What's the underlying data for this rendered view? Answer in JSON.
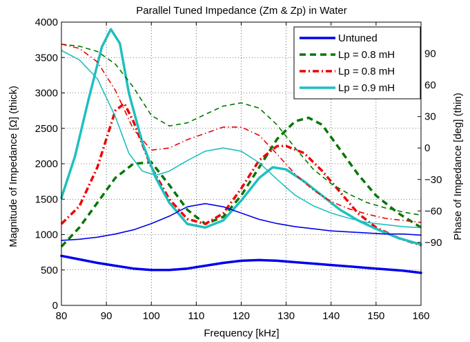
{
  "chart_data": {
    "type": "line",
    "title": "Parallel Tuned Impedance (Zm & Zp) in Water",
    "xlabel": "Frequency [kHz]",
    "ylabel_left": "Magnitude of Impedance [Ω] (thick)",
    "ylabel_right": "Phase of Impedance [deg] (thin)",
    "xlim": [
      80,
      160
    ],
    "ylim_left": [
      0,
      4000
    ],
    "ylim_right": [
      -150,
      120
    ],
    "x_ticks": [
      "80",
      "90",
      "100",
      "110",
      "120",
      "130",
      "140",
      "150",
      "160"
    ],
    "y_left_ticks": [
      "0",
      "500",
      "1000",
      "1500",
      "2000",
      "2500",
      "3000",
      "3500",
      "4000"
    ],
    "y_right_ticks": [
      "−90",
      "−60",
      "−30",
      "0",
      "30",
      "60",
      "90"
    ],
    "grid": true,
    "legend_position": "top-right",
    "legend": [
      {
        "label": "Untuned",
        "color": "#0000ee",
        "style": "solid"
      },
      {
        "label": "Lp = 0.8 mH",
        "color": "#007700",
        "style": "dashed"
      },
      {
        "label": "Lp = 0.8 mH",
        "color": "#ee0000",
        "style": "dashdot"
      },
      {
        "label": "Lp = 0.9 mH",
        "color": "#1fbfbf",
        "style": "solid"
      }
    ],
    "series": [
      {
        "name": "Untuned",
        "axis": "left",
        "weight": "thick",
        "color": "#0000ee",
        "style": "solid",
        "x": [
          80,
          84,
          88,
          92,
          96,
          100,
          104,
          108,
          112,
          116,
          120,
          124,
          128,
          132,
          136,
          140,
          144,
          148,
          152,
          156,
          160
        ],
        "y": [
          700,
          650,
          600,
          560,
          520,
          500,
          500,
          520,
          560,
          600,
          630,
          640,
          630,
          610,
          590,
          570,
          550,
          530,
          510,
          490,
          460
        ]
      },
      {
        "name": "Untuned",
        "axis": "right",
        "weight": "thin",
        "color": "#0000ee",
        "style": "solid",
        "x": [
          80,
          84,
          88,
          92,
          96,
          100,
          104,
          108,
          112,
          116,
          120,
          124,
          128,
          132,
          136,
          140,
          144,
          148,
          152,
          156,
          160
        ],
        "y": [
          -88,
          -87,
          -85,
          -82,
          -78,
          -72,
          -65,
          -56,
          -53,
          -56,
          -62,
          -68,
          -72,
          -75,
          -77,
          -79,
          -80,
          -81,
          -82,
          -82,
          -83
        ]
      },
      {
        "name": "Lp = 0.8 mH",
        "axis": "left",
        "weight": "thick",
        "color": "#007700",
        "style": "dashed",
        "x": [
          80,
          84,
          88,
          92,
          96,
          100,
          104,
          108,
          112,
          116,
          120,
          124,
          128,
          132,
          135,
          138,
          142,
          146,
          150,
          155,
          160
        ],
        "y": [
          830,
          1100,
          1450,
          1800,
          2000,
          2020,
          1700,
          1350,
          1150,
          1250,
          1550,
          1950,
          2350,
          2600,
          2650,
          2550,
          2200,
          1850,
          1550,
          1300,
          1100
        ]
      },
      {
        "name": "Lp = 0.8 mH",
        "axis": "right",
        "weight": "thin",
        "color": "#007700",
        "style": "dashed",
        "x": [
          80,
          84,
          88,
          92,
          96,
          100,
          104,
          108,
          112,
          116,
          120,
          124,
          128,
          132,
          136,
          140,
          144,
          148,
          152,
          156,
          160
        ],
        "y": [
          99,
          97,
          92,
          80,
          58,
          31,
          21,
          24,
          32,
          40,
          43,
          38,
          22,
          0,
          -20,
          -34,
          -44,
          -52,
          -57,
          -61,
          -64
        ]
      },
      {
        "name": "Lp = 0.8 mH",
        "axis": "left",
        "weight": "thick",
        "color": "#ee0000",
        "style": "dashdot",
        "x": [
          80,
          84,
          88,
          92,
          94,
          96,
          100,
          104,
          108,
          112,
          116,
          120,
          124,
          128,
          130,
          134,
          138,
          142,
          146,
          150,
          155,
          160
        ],
        "y": [
          1150,
          1400,
          1950,
          2750,
          2850,
          2600,
          1950,
          1500,
          1220,
          1150,
          1300,
          1650,
          2050,
          2250,
          2250,
          2150,
          1900,
          1600,
          1300,
          1100,
          950,
          850
        ]
      },
      {
        "name": "Lp = 0.8 mH",
        "axis": "right",
        "weight": "thin",
        "color": "#ee0000",
        "style": "dashdot",
        "x": [
          80,
          84,
          88,
          92,
          96,
          100,
          104,
          108,
          112,
          116,
          120,
          124,
          128,
          132,
          136,
          140,
          144,
          148,
          152,
          156,
          160
        ],
        "y": [
          99,
          95,
          82,
          55,
          18,
          -2,
          0,
          8,
          14,
          20,
          20,
          12,
          -6,
          -25,
          -40,
          -51,
          -58,
          -63,
          -67,
          -69,
          -71
        ]
      },
      {
        "name": "Lp = 0.9 mH",
        "axis": "left",
        "weight": "thick",
        "color": "#1fbfbf",
        "style": "solid",
        "x": [
          80,
          83,
          86,
          89,
          91,
          93,
          95,
          98,
          101,
          104,
          108,
          112,
          116,
          120,
          124,
          127,
          130,
          134,
          138,
          142,
          146,
          150,
          155,
          160
        ],
        "y": [
          1520,
          2100,
          2900,
          3650,
          3900,
          3700,
          3000,
          2300,
          1800,
          1450,
          1150,
          1100,
          1200,
          1480,
          1800,
          1950,
          1920,
          1750,
          1550,
          1350,
          1200,
          1080,
          950,
          860
        ]
      },
      {
        "name": "Lp = 0.9 mH",
        "axis": "right",
        "weight": "thin",
        "color": "#1fbfbf",
        "style": "solid",
        "x": [
          80,
          84,
          88,
          92,
          95,
          98,
          101,
          104,
          108,
          112,
          116,
          120,
          124,
          128,
          132,
          136,
          140,
          144,
          148,
          152,
          156,
          160
        ],
        "y": [
          93,
          84,
          66,
          30,
          -5,
          -22,
          -26,
          -22,
          -12,
          -3,
          0,
          -3,
          -14,
          -30,
          -45,
          -55,
          -62,
          -67,
          -71,
          -73,
          -75,
          -76
        ]
      }
    ]
  }
}
